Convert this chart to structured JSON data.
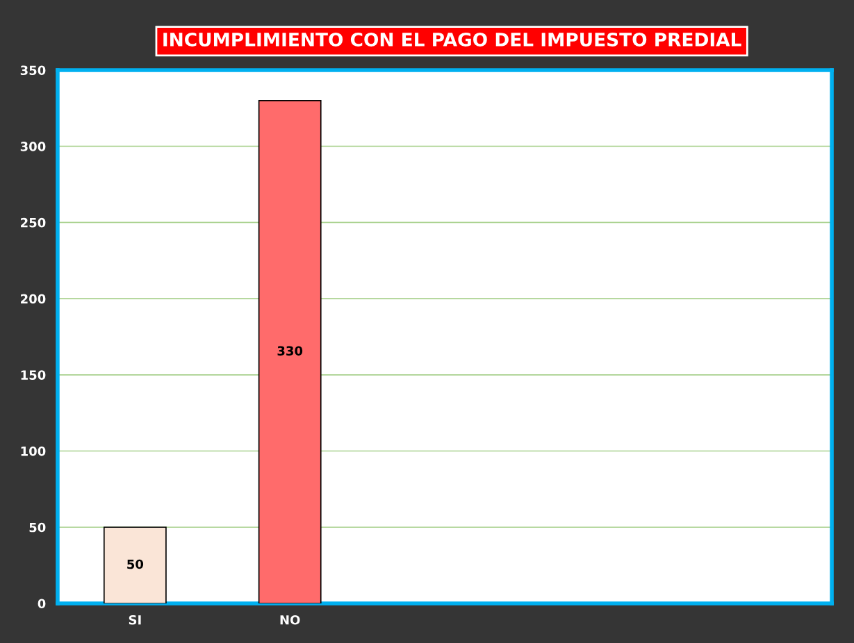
{
  "chart_data": {
    "type": "bar",
    "title": "INCUMPLIMIENTO CON EL PAGO DEL IMPUESTO PREDIAL",
    "categories": [
      "SI",
      "NO",
      null,
      null,
      null
    ],
    "values": [
      50,
      330,
      null,
      null,
      null
    ],
    "colors": [
      "#fae5d7",
      "#ff6b6b",
      "#ffffff",
      "#ffffff",
      "#ffffff"
    ],
    "ylim": [
      0,
      350
    ],
    "yticks": [
      0,
      50,
      100,
      150,
      200,
      250,
      300,
      350
    ],
    "grid": "y",
    "data_labels": true,
    "legend": false
  }
}
